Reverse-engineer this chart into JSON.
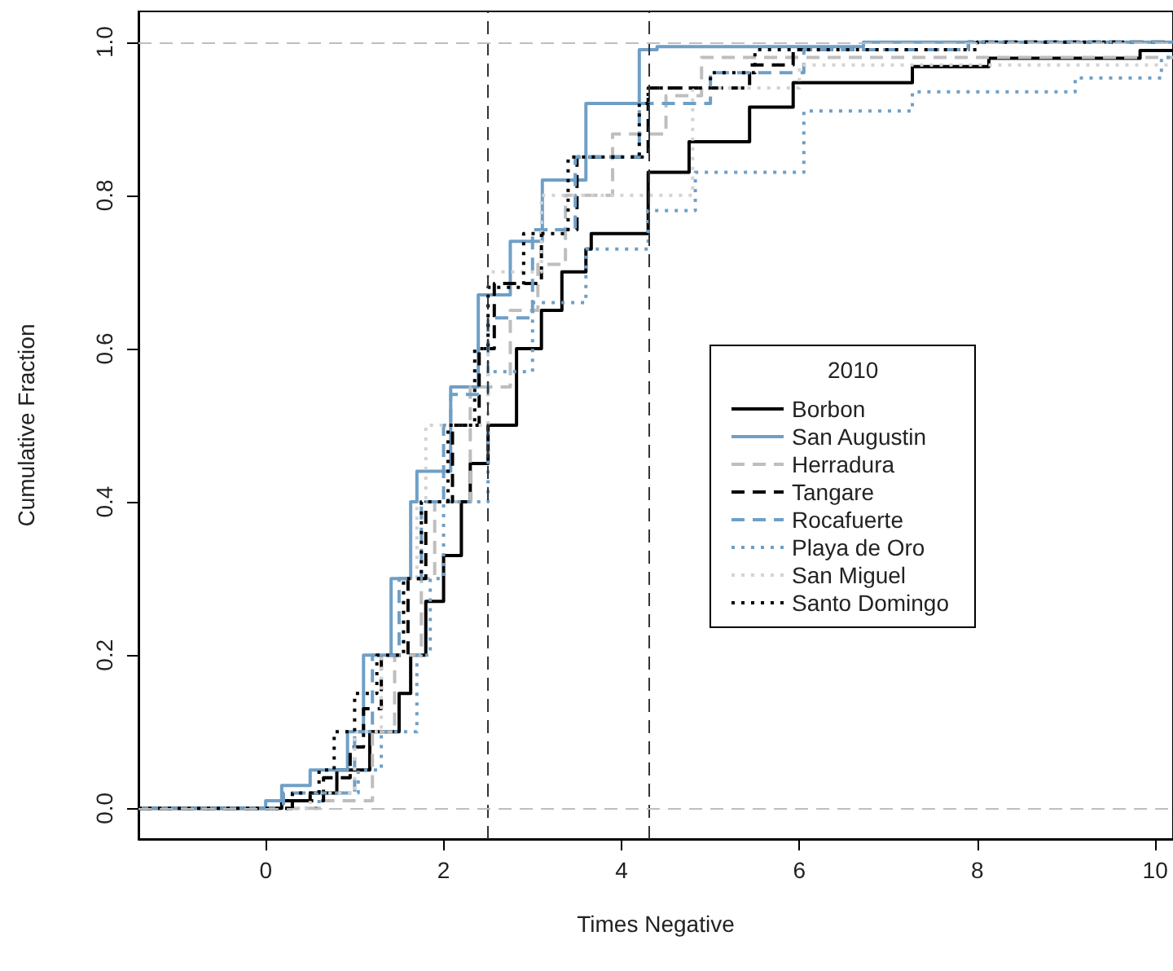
{
  "chart_data": {
    "type": "step",
    "xlabel": "Times Negative",
    "ylabel": "Cumulative Fraction",
    "legend_title": "2010",
    "legend": "right",
    "grid": false,
    "marker": "none",
    "xlim": [
      -1.43,
      10.2
    ],
    "ylim": [
      -0.04,
      1.04
    ],
    "xticks": [
      0,
      2,
      4,
      6,
      8,
      10
    ],
    "yticks": [
      {
        "value": 0,
        "label": "0.0"
      },
      {
        "value": 0.2,
        "label": "0.2"
      },
      {
        "value": 0.4,
        "label": "0.4"
      },
      {
        "value": 0.6,
        "label": "0.6"
      },
      {
        "value": 0.8,
        "label": "0.8"
      },
      {
        "value": 1,
        "label": "1.0"
      }
    ],
    "ref_lines": [
      {
        "axis": "x",
        "value": 2.5,
        "color": "#333333",
        "line_style": "dashed"
      },
      {
        "axis": "x",
        "value": 4.3,
        "color": "#333333",
        "line_style": "dashed"
      },
      {
        "axis": "y",
        "value": 0,
        "color": "#bebebe",
        "line_style": "dashed"
      },
      {
        "axis": "y",
        "value": 1,
        "color": "#bebebe",
        "line_style": "dashed"
      }
    ],
    "series": [
      {
        "name": "Borbon",
        "color": "#000000",
        "line_style": "solid",
        "x": [
          -1.43,
          0.18,
          0.5,
          0.8,
          1.17,
          1.5,
          1.63,
          1.8,
          2.0,
          2.2,
          2.3,
          2.5,
          2.82,
          3.1,
          3.33,
          3.6,
          3.66,
          4.3,
          4.76,
          5.44,
          5.93,
          7.27,
          8.13,
          9.83,
          10.2
        ],
        "values": [
          0,
          0.01,
          0.02,
          0.05,
          0.1,
          0.15,
          0.2,
          0.27,
          0.33,
          0.4,
          0.45,
          0.5,
          0.6,
          0.65,
          0.7,
          0.73,
          0.75,
          0.83,
          0.87,
          0.915,
          0.947,
          0.968,
          0.979,
          0.989,
          0.989
        ]
      },
      {
        "name": "San Augustin",
        "color": "#6f9fc6",
        "line_style": "solid",
        "x": [
          -1.43,
          0,
          0.18,
          0.5,
          0.92,
          1.1,
          1.41,
          1.63,
          1.7,
          2.08,
          2.39,
          2.75,
          3.11,
          3.6,
          4.2,
          4.4,
          6.72,
          10.2
        ],
        "values": [
          0,
          0.01,
          0.03,
          0.05,
          0.1,
          0.2,
          0.3,
          0.4,
          0.44,
          0.55,
          0.67,
          0.74,
          0.82,
          0.92,
          0.99,
          0.994,
          1,
          1
        ]
      },
      {
        "name": "Herradura",
        "color": "#bebebe",
        "line_style": "dashed",
        "x": [
          -1.43,
          0.62,
          1.2,
          1.45,
          1.75,
          1.9,
          2.3,
          2.75,
          3.06,
          3.37,
          3.9,
          4.5,
          4.9,
          10.2
        ],
        "values": [
          0,
          0.01,
          0.1,
          0.2,
          0.3,
          0.4,
          0.55,
          0.65,
          0.71,
          0.8,
          0.88,
          0.93,
          0.98,
          0.98
        ]
      },
      {
        "name": "Tangare",
        "color": "#000000",
        "line_style": "dashed",
        "x": [
          -1.43,
          0.3,
          0.65,
          0.95,
          1.1,
          1.3,
          1.6,
          1.8,
          2.1,
          2.4,
          2.57,
          3.1,
          3.5,
          4.3,
          5.44,
          5.93,
          7.9,
          10.2
        ],
        "values": [
          0,
          0.01,
          0.04,
          0.08,
          0.13,
          0.2,
          0.3,
          0.4,
          0.5,
          0.6,
          0.685,
          0.755,
          0.85,
          0.94,
          0.97,
          0.99,
          1,
          1
        ]
      },
      {
        "name": "Rocafuerte",
        "color": "#6f9fc6",
        "line_style": "dashed",
        "x": [
          -1.43,
          0.2,
          1.0,
          1.2,
          1.5,
          1.75,
          2.0,
          2.08,
          2.5,
          3.0,
          3.48,
          4.2,
          5.0,
          6.05,
          7.9,
          10.2
        ],
        "values": [
          0,
          0.02,
          0.1,
          0.2,
          0.3,
          0.4,
          0.5,
          0.54,
          0.64,
          0.755,
          0.85,
          0.92,
          0.96,
          0.99,
          1,
          1
        ]
      },
      {
        "name": "Playa de Oro",
        "color": "#6f9fc6",
        "line_style": "dotted",
        "x": [
          -1.43,
          0.6,
          1.04,
          1.3,
          1.7,
          1.85,
          2.0,
          2.5,
          3.0,
          3.6,
          4.3,
          4.83,
          6.05,
          7.27,
          9.1,
          10.07,
          10.2
        ],
        "values": [
          0,
          0.02,
          0.05,
          0.1,
          0.2,
          0.3,
          0.4,
          0.57,
          0.66,
          0.73,
          0.78,
          0.83,
          0.91,
          0.935,
          0.953,
          0.98,
          0.98
        ]
      },
      {
        "name": "San Miguel",
        "color": "#d3d3d3",
        "line_style": "dotted",
        "x": [
          -1.43,
          0.5,
          1.0,
          1.3,
          1.55,
          1.7,
          1.8,
          2.5,
          3.1,
          4.8,
          6.0,
          10.2
        ],
        "values": [
          0,
          0.02,
          0.1,
          0.2,
          0.3,
          0.4,
          0.5,
          0.7,
          0.8,
          0.94,
          0.97,
          0.97
        ]
      },
      {
        "name": "Santo Domingo",
        "color": "#000000",
        "line_style": "dotted",
        "x": [
          -1.43,
          0.3,
          0.6,
          0.77,
          1.0,
          1.25,
          1.55,
          1.75,
          2.05,
          2.35,
          2.5,
          2.9,
          3.4,
          4.2,
          4.3,
          5.0,
          5.5,
          8.0,
          9.65
        ],
        "values": [
          0,
          0.02,
          0.05,
          0.1,
          0.15,
          0.2,
          0.3,
          0.4,
          0.5,
          0.6,
          0.68,
          0.75,
          0.85,
          0.92,
          0.94,
          0.96,
          0.99,
          1,
          1
        ]
      }
    ]
  }
}
